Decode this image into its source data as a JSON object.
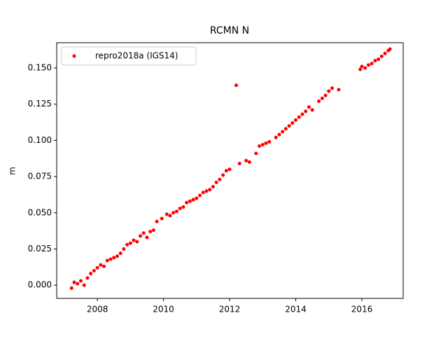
{
  "chart_data": {
    "type": "scatter",
    "title": "RCMN N",
    "ylabel": "m",
    "xlim": [
      2006.77,
      2017.25
    ],
    "ylim": [
      -0.0091,
      0.1674
    ],
    "xticks": [
      2008,
      2010,
      2012,
      2014,
      2016
    ],
    "yticks": [
      {
        "value": 0,
        "label": "0.000"
      },
      {
        "value": 0.025,
        "label": "0.025"
      },
      {
        "value": 0.05,
        "label": "0.050"
      },
      {
        "value": 0.075,
        "label": "0.075"
      },
      {
        "value": 0.1,
        "label": "0.100"
      },
      {
        "value": 0.125,
        "label": "0.125"
      },
      {
        "value": 0.15,
        "label": "0.150"
      }
    ],
    "legend": "upper left",
    "series": [
      {
        "name": "repro2018a (IGS14)",
        "color": "#ff0000",
        "x": [
          2007.22,
          2007.3,
          2007.4,
          2007.5,
          2007.6,
          2007.7,
          2007.8,
          2007.9,
          2008.0,
          2008.1,
          2008.2,
          2008.3,
          2008.4,
          2008.5,
          2008.6,
          2008.7,
          2008.8,
          2008.9,
          2009.0,
          2009.1,
          2009.2,
          2009.3,
          2009.4,
          2009.5,
          2009.6,
          2009.7,
          2009.8,
          2009.95,
          2010.1,
          2010.2,
          2010.3,
          2010.4,
          2010.5,
          2010.6,
          2010.7,
          2010.8,
          2010.9,
          2011.0,
          2011.1,
          2011.2,
          2011.3,
          2011.4,
          2011.5,
          2011.6,
          2011.7,
          2011.8,
          2011.9,
          2012.0,
          2012.2,
          2012.3,
          2012.5,
          2012.6,
          2012.8,
          2012.9,
          2013.0,
          2013.1,
          2013.2,
          2013.4,
          2013.5,
          2013.6,
          2013.7,
          2013.8,
          2013.9,
          2014.0,
          2014.1,
          2014.2,
          2014.3,
          2014.4,
          2014.5,
          2014.7,
          2014.8,
          2014.9,
          2015.0,
          2015.1,
          2015.3,
          2015.95,
          2016.0,
          2016.1,
          2016.2,
          2016.3,
          2016.4,
          2016.5,
          2016.6,
          2016.7,
          2016.8,
          2016.85
        ],
        "values": [
          -0.002,
          0.002,
          0.001,
          0.003,
          0.0,
          0.005,
          0.008,
          0.01,
          0.012,
          0.014,
          0.013,
          0.017,
          0.018,
          0.019,
          0.02,
          0.022,
          0.025,
          0.028,
          0.029,
          0.031,
          0.03,
          0.034,
          0.036,
          0.033,
          0.037,
          0.038,
          0.044,
          0.046,
          0.049,
          0.048,
          0.05,
          0.051,
          0.053,
          0.054,
          0.057,
          0.058,
          0.059,
          0.06,
          0.062,
          0.064,
          0.065,
          0.066,
          0.068,
          0.071,
          0.073,
          0.076,
          0.079,
          0.08,
          0.138,
          0.084,
          0.086,
          0.085,
          0.091,
          0.096,
          0.097,
          0.098,
          0.099,
          0.102,
          0.104,
          0.106,
          0.108,
          0.11,
          0.112,
          0.114,
          0.116,
          0.118,
          0.12,
          0.123,
          0.121,
          0.127,
          0.129,
          0.131,
          0.134,
          0.136,
          0.135,
          0.149,
          0.151,
          0.15,
          0.152,
          0.153,
          0.155,
          0.156,
          0.158,
          0.16,
          0.162,
          0.163
        ]
      }
    ]
  }
}
